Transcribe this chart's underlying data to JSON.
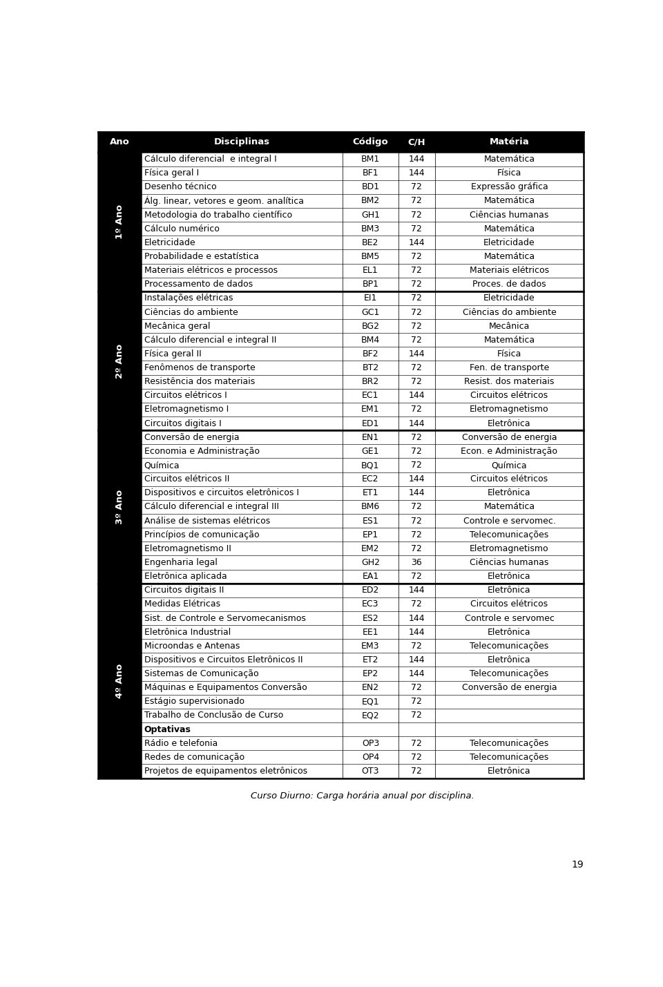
{
  "header": [
    "Ano",
    "Disciplinas",
    "Código",
    "C/H",
    "Matéria"
  ],
  "rows": [
    {
      "disciplina": "Cálculo diferencial  e integral I",
      "codigo": "BM1",
      "ch": "144",
      "materia": "Matemática",
      "section_start": false,
      "bold": false
    },
    {
      "disciplina": "Física geral I",
      "codigo": "BF1",
      "ch": "144",
      "materia": "Física",
      "section_start": false,
      "bold": false
    },
    {
      "disciplina": "Desenho técnico",
      "codigo": "BD1",
      "ch": "72",
      "materia": "Expressão gráfica",
      "section_start": false,
      "bold": false
    },
    {
      "disciplina": "Álg. linear, vetores e geom. analítica",
      "codigo": "BM2",
      "ch": "72",
      "materia": "Matemática",
      "section_start": false,
      "bold": false
    },
    {
      "disciplina": "Metodologia do trabalho científico",
      "codigo": "GH1",
      "ch": "72",
      "materia": "Ciências humanas",
      "section_start": false,
      "bold": false
    },
    {
      "disciplina": "Cálculo numérico",
      "codigo": "BM3",
      "ch": "72",
      "materia": "Matemática",
      "section_start": false,
      "bold": false
    },
    {
      "disciplina": "Eletricidade",
      "codigo": "BE2",
      "ch": "144",
      "materia": "Eletricidade",
      "section_start": false,
      "bold": false
    },
    {
      "disciplina": "Probabilidade e estatística",
      "codigo": "BM5",
      "ch": "72",
      "materia": "Matemática",
      "section_start": false,
      "bold": false
    },
    {
      "disciplina": "Materiais elétricos e processos",
      "codigo": "EL1",
      "ch": "72",
      "materia": "Materiais elétricos",
      "section_start": false,
      "bold": false
    },
    {
      "disciplina": "Processamento de dados",
      "codigo": "BP1",
      "ch": "72",
      "materia": "Proces. de dados",
      "section_start": false,
      "bold": false
    },
    {
      "disciplina": "Instalações elétricas",
      "codigo": "EI1",
      "ch": "72",
      "materia": "Eletricidade",
      "section_start": true,
      "bold": false
    },
    {
      "disciplina": "Ciências do ambiente",
      "codigo": "GC1",
      "ch": "72",
      "materia": "Ciências do ambiente",
      "section_start": false,
      "bold": false
    },
    {
      "disciplina": "Mecânica geral",
      "codigo": "BG2",
      "ch": "72",
      "materia": "Mecânica",
      "section_start": false,
      "bold": false
    },
    {
      "disciplina": "Cálculo diferencial e integral II",
      "codigo": "BM4",
      "ch": "72",
      "materia": "Matemática",
      "section_start": false,
      "bold": false
    },
    {
      "disciplina": "Física geral II",
      "codigo": "BF2",
      "ch": "144",
      "materia": "Física",
      "section_start": false,
      "bold": false
    },
    {
      "disciplina": "Fenômenos de transporte",
      "codigo": "BT2",
      "ch": "72",
      "materia": "Fen. de transporte",
      "section_start": false,
      "bold": false
    },
    {
      "disciplina": "Resistência dos materiais",
      "codigo": "BR2",
      "ch": "72",
      "materia": "Resist. dos materiais",
      "section_start": false,
      "bold": false
    },
    {
      "disciplina": "Circuitos elétricos I",
      "codigo": "EC1",
      "ch": "144",
      "materia": "Circuitos elétricos",
      "section_start": false,
      "bold": false
    },
    {
      "disciplina": "Eletromagnetismo I",
      "codigo": "EM1",
      "ch": "72",
      "materia": "Eletromagnetismo",
      "section_start": false,
      "bold": false
    },
    {
      "disciplina": "Circuitos digitais I",
      "codigo": "ED1",
      "ch": "144",
      "materia": "Eletrônica",
      "section_start": false,
      "bold": false
    },
    {
      "disciplina": "Conversão de energia",
      "codigo": "EN1",
      "ch": "72",
      "materia": "Conversão de energia",
      "section_start": true,
      "bold": false
    },
    {
      "disciplina": "Economia e Administração",
      "codigo": "GE1",
      "ch": "72",
      "materia": "Econ. e Administração",
      "section_start": false,
      "bold": false
    },
    {
      "disciplina": "Química",
      "codigo": "BQ1",
      "ch": "72",
      "materia": "Química",
      "section_start": false,
      "bold": false
    },
    {
      "disciplina": "Circuitos elétricos II",
      "codigo": "EC2",
      "ch": "144",
      "materia": "Circuitos elétricos",
      "section_start": false,
      "bold": false
    },
    {
      "disciplina": "Dispositivos e circuitos eletrônicos I",
      "codigo": "ET1",
      "ch": "144",
      "materia": "Eletrônica",
      "section_start": false,
      "bold": false
    },
    {
      "disciplina": "Cálculo diferencial e integral III",
      "codigo": "BM6",
      "ch": "72",
      "materia": "Matemática",
      "section_start": false,
      "bold": false
    },
    {
      "disciplina": "Análise de sistemas elétricos",
      "codigo": "ES1",
      "ch": "72",
      "materia": "Controle e servomec.",
      "section_start": false,
      "bold": false
    },
    {
      "disciplina": "Princípios de comunicação",
      "codigo": "EP1",
      "ch": "72",
      "materia": "Telecomunicações",
      "section_start": false,
      "bold": false
    },
    {
      "disciplina": "Eletromagnetismo II",
      "codigo": "EM2",
      "ch": "72",
      "materia": "Eletromagnetismo",
      "section_start": false,
      "bold": false
    },
    {
      "disciplina": "Engenharia legal",
      "codigo": "GH2",
      "ch": "36",
      "materia": "Ciências humanas",
      "section_start": false,
      "bold": false
    },
    {
      "disciplina": "Eletrônica aplicada",
      "codigo": "EA1",
      "ch": "72",
      "materia": "Eletrônica",
      "section_start": false,
      "bold": false
    },
    {
      "disciplina": "Circuitos digitais II",
      "codigo": "ED2",
      "ch": "144",
      "materia": "Eletrônica",
      "section_start": true,
      "bold": false
    },
    {
      "disciplina": "Medidas Elétricas",
      "codigo": "EC3",
      "ch": "72",
      "materia": "Circuitos elétricos",
      "section_start": false,
      "bold": false
    },
    {
      "disciplina": "Sist. de Controle e Servomecanismos",
      "codigo": "ES2",
      "ch": "144",
      "materia": "Controle e servomec",
      "section_start": false,
      "bold": false
    },
    {
      "disciplina": "Eletrônica Industrial",
      "codigo": "EE1",
      "ch": "144",
      "materia": "Eletrônica",
      "section_start": false,
      "bold": false
    },
    {
      "disciplina": "Microondas e Antenas",
      "codigo": "EM3",
      "ch": "72",
      "materia": "Telecomunicações",
      "section_start": false,
      "bold": false
    },
    {
      "disciplina": "Dispositivos e Circuitos Eletrônicos II",
      "codigo": "ET2",
      "ch": "144",
      "materia": "Eletrônica",
      "section_start": false,
      "bold": false
    },
    {
      "disciplina": "Sistemas de Comunicação",
      "codigo": "EP2",
      "ch": "144",
      "materia": "Telecomunicações",
      "section_start": false,
      "bold": false
    },
    {
      "disciplina": "Máquinas e Equipamentos Conversão",
      "codigo": "EN2",
      "ch": "72",
      "materia": "Conversão de energia",
      "section_start": false,
      "bold": false
    },
    {
      "disciplina": "Estágio supervisionado",
      "codigo": "EQ1",
      "ch": "72",
      "materia": "",
      "section_start": false,
      "bold": false
    },
    {
      "disciplina": "Trabalho de Conclusão de Curso",
      "codigo": "EQ2",
      "ch": "72",
      "materia": "",
      "section_start": false,
      "bold": false
    },
    {
      "disciplina": "Optativas",
      "codigo": "",
      "ch": "",
      "materia": "",
      "section_start": false,
      "bold": true
    },
    {
      "disciplina": "Rádio e telefonia",
      "codigo": "OP3",
      "ch": "72",
      "materia": "Telecomunicações",
      "section_start": false,
      "bold": false
    },
    {
      "disciplina": "Redes de comunicação",
      "codigo": "OP4",
      "ch": "72",
      "materia": "Telecomunicações",
      "section_start": false,
      "bold": false
    },
    {
      "disciplina": "Projetos de equipamentos eletrônicos",
      "codigo": "OT3",
      "ch": "72",
      "materia": "Eletrônica",
      "section_start": false,
      "bold": false
    }
  ],
  "section_spans": [
    {
      "label": "1º Ano",
      "start": 0,
      "end": 9
    },
    {
      "label": "2º Ano",
      "start": 10,
      "end": 19
    },
    {
      "label": "3º Ano",
      "start": 20,
      "end": 30
    },
    {
      "label": "4º Ano",
      "start": 31,
      "end": 44
    }
  ],
  "footer": "Curso Diurno: Carga horária anual por disciplina.",
  "page_number": "19",
  "header_bg": "#000000",
  "header_fg": "#ffffff",
  "font_size": 9.0
}
